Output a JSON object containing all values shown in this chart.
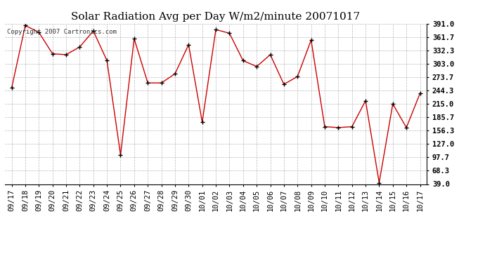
{
  "title": "Solar Radiation Avg per Day W/m2/minute 20071017",
  "copyright_text": "Copyright 2007 Cartronics.com",
  "labels": [
    "09/17",
    "09/18",
    "09/19",
    "09/20",
    "09/21",
    "09/22",
    "09/23",
    "09/24",
    "09/25",
    "09/26",
    "09/27",
    "09/28",
    "09/29",
    "09/30",
    "10/01",
    "10/02",
    "10/03",
    "10/04",
    "10/05",
    "10/06",
    "10/07",
    "10/08",
    "10/09",
    "10/10",
    "10/11",
    "10/12",
    "10/13",
    "10/14",
    "10/15",
    "10/16",
    "10/17"
  ],
  "values": [
    250,
    387,
    372,
    325,
    323,
    340,
    375,
    310,
    103,
    358,
    261,
    261,
    281,
    345,
    175,
    378,
    370,
    310,
    297,
    323,
    258,
    275,
    355,
    165,
    163,
    165,
    222,
    42,
    215,
    163,
    238
  ],
  "line_color": "#cc0000",
  "marker": "+",
  "marker_color": "#000000",
  "bg_color": "#ffffff",
  "grid_color": "#999999",
  "yticks": [
    39.0,
    68.3,
    97.7,
    127.0,
    156.3,
    185.7,
    215.0,
    244.3,
    273.7,
    303.0,
    332.3,
    361.7,
    391.0
  ],
  "ymin": 39.0,
  "ymax": 391.0,
  "title_fontsize": 11,
  "tick_fontsize": 7.5,
  "copyright_fontsize": 6.5
}
